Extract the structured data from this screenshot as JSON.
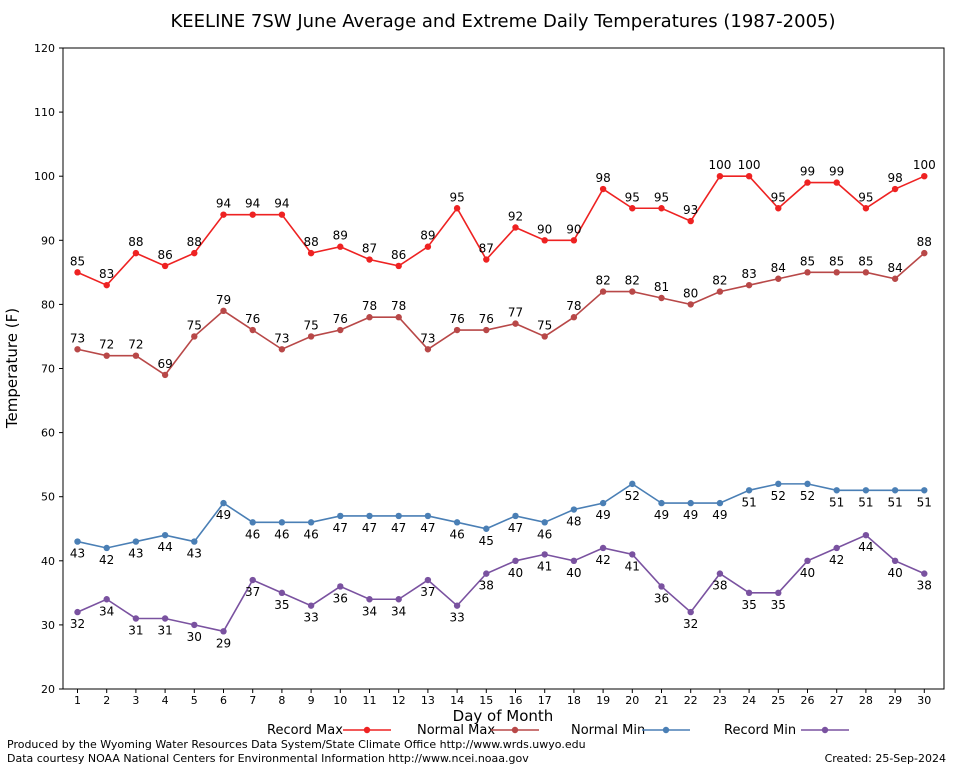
{
  "chart_data": {
    "type": "line",
    "title": "KEELINE 7SW June Average and Extreme Daily Temperatures (1987-2005)",
    "xlabel": "Day of Month",
    "ylabel": "Temperature (F)",
    "ylim": [
      20,
      120
    ],
    "y_major_ticks": [
      20,
      30,
      40,
      50,
      60,
      70,
      80,
      90,
      100,
      110,
      120
    ],
    "x": [
      1,
      2,
      3,
      4,
      5,
      6,
      7,
      8,
      9,
      10,
      11,
      12,
      13,
      14,
      15,
      16,
      17,
      18,
      19,
      20,
      21,
      22,
      23,
      24,
      25,
      26,
      27,
      28,
      29,
      30
    ],
    "grid": true,
    "legend_position": "bottom",
    "series": [
      {
        "name": "Record Max",
        "color": "#ee2222",
        "label_position": "above",
        "values": [
          85,
          83,
          88,
          86,
          88,
          94,
          94,
          94,
          88,
          89,
          87,
          86,
          89,
          95,
          87,
          92,
          90,
          90,
          98,
          95,
          95,
          93,
          100,
          100,
          95,
          99,
          99,
          95,
          98,
          100
        ]
      },
      {
        "name": "Normal Max",
        "color": "#b84848",
        "label_position": "above",
        "values": [
          73,
          72,
          72,
          69,
          75,
          79,
          76,
          73,
          75,
          76,
          78,
          78,
          73,
          76,
          76,
          77,
          75,
          78,
          82,
          82,
          81,
          80,
          82,
          83,
          84,
          85,
          85,
          85,
          84,
          88
        ]
      },
      {
        "name": "Normal Min",
        "color": "#4a7fb5",
        "label_position": "below",
        "values": [
          43,
          42,
          43,
          44,
          43,
          49,
          46,
          46,
          46,
          47,
          47,
          47,
          47,
          46,
          45,
          47,
          46,
          48,
          49,
          52,
          49,
          49,
          49,
          51,
          52,
          52,
          51,
          51,
          51,
          51
        ]
      },
      {
        "name": "Record Min",
        "color": "#7a52a0",
        "label_position": "below",
        "values": [
          32,
          34,
          31,
          31,
          30,
          29,
          37,
          35,
          33,
          36,
          34,
          34,
          37,
          33,
          38,
          40,
          41,
          40,
          42,
          41,
          36,
          32,
          38,
          35,
          35,
          40,
          42,
          44,
          40,
          38
        ]
      }
    ]
  },
  "footer": {
    "produced_by": "Produced by the Wyoming Water Resources Data System/State Climate Office http://www.wrds.uwyo.edu",
    "data_courtesy": "Data courtesy NOAA National Centers for Environmental Information http://www.ncei.noaa.gov",
    "created": "Created:  25-Sep-2024"
  }
}
